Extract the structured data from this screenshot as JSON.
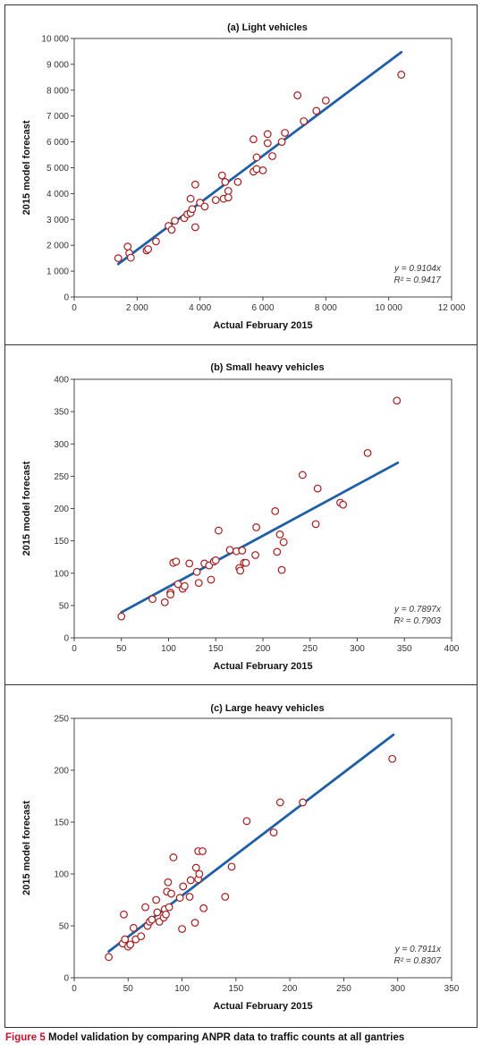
{
  "colors": {
    "points": "#a61c1c",
    "fit_line": "#1f5fa8",
    "frame": "#333333",
    "caption_label": "#c8102e"
  },
  "caption": {
    "label": "Figure 5",
    "text": "Model validation by comparing ANPR data to traffic counts at all gantries"
  },
  "chart_data": [
    {
      "type": "scatter",
      "title": "(a) Light vehicles",
      "xlabel": "Actual February 2015",
      "ylabel": "2015 model forecast",
      "xlim": [
        0,
        12000
      ],
      "ylim": [
        0,
        10000
      ],
      "x_ticks": [
        0,
        2000,
        4000,
        6000,
        8000,
        10000,
        12000
      ],
      "x_tick_labels": [
        "0",
        "2 000",
        "4 000",
        "6 000",
        "8 000",
        "10 000",
        "12 000"
      ],
      "y_ticks": [
        0,
        1000,
        2000,
        3000,
        4000,
        5000,
        6000,
        7000,
        8000,
        9000,
        10000
      ],
      "y_tick_labels": [
        "0",
        "1 000",
        "2 000",
        "3 000",
        "4 000",
        "5 000",
        "6 000",
        "7 000",
        "8 000",
        "9 000",
        "10 000"
      ],
      "equation": "y = 0.9104x",
      "r_squared": "R² = 0.9417",
      "trendline": {
        "slope": 0.9104,
        "x_range": [
          1400,
          10400
        ]
      },
      "points": [
        [
          1400,
          1500
        ],
        [
          1700,
          1950
        ],
        [
          1750,
          1700
        ],
        [
          1800,
          1520
        ],
        [
          2300,
          1800
        ],
        [
          2350,
          1850
        ],
        [
          2600,
          2150
        ],
        [
          3000,
          2750
        ],
        [
          3100,
          2600
        ],
        [
          3200,
          2950
        ],
        [
          3500,
          3050
        ],
        [
          3600,
          3200
        ],
        [
          3700,
          3250
        ],
        [
          3700,
          3800
        ],
        [
          3750,
          3400
        ],
        [
          3850,
          4350
        ],
        [
          3850,
          2700
        ],
        [
          4000,
          3650
        ],
        [
          4150,
          3500
        ],
        [
          4500,
          3750
        ],
        [
          4700,
          4700
        ],
        [
          4750,
          3800
        ],
        [
          4800,
          4450
        ],
        [
          4900,
          4100
        ],
        [
          4900,
          3850
        ],
        [
          5200,
          4450
        ],
        [
          5700,
          4850
        ],
        [
          5700,
          6100
        ],
        [
          5800,
          4950
        ],
        [
          5800,
          5400
        ],
        [
          6000,
          4900
        ],
        [
          6150,
          6300
        ],
        [
          6150,
          5950
        ],
        [
          6300,
          5450
        ],
        [
          6600,
          6000
        ],
        [
          6700,
          6350
        ],
        [
          7100,
          7800
        ],
        [
          7300,
          6800
        ],
        [
          7700,
          7200
        ],
        [
          8000,
          7600
        ],
        [
          10400,
          8600
        ]
      ]
    },
    {
      "type": "scatter",
      "title": "(b) Small heavy vehicles",
      "xlabel": "Actual February 2015",
      "ylabel": "2015 model forecast",
      "xlim": [
        0,
        400
      ],
      "ylim": [
        0,
        400
      ],
      "x_ticks": [
        0,
        50,
        100,
        150,
        200,
        250,
        300,
        350,
        400
      ],
      "x_tick_labels": [
        "0",
        "50",
        "100",
        "150",
        "200",
        "250",
        "300",
        "350",
        "400"
      ],
      "y_ticks": [
        0,
        50,
        100,
        150,
        200,
        250,
        300,
        350,
        400
      ],
      "y_tick_labels": [
        "0",
        "50",
        "100",
        "150",
        "200",
        "250",
        "300",
        "350",
        "400"
      ],
      "equation": "y = 0.7897x",
      "r_squared": "R² = 0.7903",
      "trendline": {
        "slope": 0.7897,
        "x_range": [
          50,
          343
        ]
      },
      "points": [
        [
          50,
          33
        ],
        [
          83,
          60
        ],
        [
          96,
          55
        ],
        [
          102,
          70
        ],
        [
          102,
          67
        ],
        [
          105,
          116
        ],
        [
          108,
          118
        ],
        [
          110,
          83
        ],
        [
          115,
          76
        ],
        [
          117,
          80
        ],
        [
          122,
          115
        ],
        [
          130,
          102
        ],
        [
          132,
          85
        ],
        [
          138,
          115
        ],
        [
          143,
          112
        ],
        [
          145,
          90
        ],
        [
          148,
          118
        ],
        [
          150,
          120
        ],
        [
          153,
          166
        ],
        [
          165,
          136
        ],
        [
          172,
          134
        ],
        [
          175,
          108
        ],
        [
          176,
          104
        ],
        [
          178,
          135
        ],
        [
          180,
          116
        ],
        [
          182,
          116
        ],
        [
          192,
          128
        ],
        [
          193,
          171
        ],
        [
          213,
          196
        ],
        [
          215,
          133
        ],
        [
          218,
          160
        ],
        [
          220,
          105
        ],
        [
          222,
          148
        ],
        [
          242,
          252
        ],
        [
          256,
          176
        ],
        [
          258,
          231
        ],
        [
          282,
          209
        ],
        [
          285,
          206
        ],
        [
          311,
          286
        ],
        [
          342,
          367
        ]
      ]
    },
    {
      "type": "scatter",
      "title": "(c) Large heavy vehicles",
      "xlabel": "Actual February 2015",
      "ylabel": "2015 model forecast",
      "xlim": [
        0,
        350
      ],
      "ylim": [
        0,
        250
      ],
      "x_ticks": [
        0,
        50,
        100,
        150,
        200,
        250,
        300,
        350
      ],
      "x_tick_labels": [
        "0",
        "50",
        "100",
        "150",
        "200",
        "250",
        "300",
        "350"
      ],
      "y_ticks": [
        0,
        50,
        100,
        150,
        200,
        250
      ],
      "y_tick_labels": [
        "0",
        "50",
        "100",
        "150",
        "200",
        "250"
      ],
      "equation": "y = 0.7911x",
      "r_squared": "R² = 0.8307",
      "trendline": {
        "slope": 0.7911,
        "x_range": [
          32,
          296
        ]
      },
      "points": [
        [
          32,
          20
        ],
        [
          45,
          33
        ],
        [
          46,
          61
        ],
        [
          47,
          37
        ],
        [
          50,
          30
        ],
        [
          52,
          32
        ],
        [
          55,
          48
        ],
        [
          57,
          37
        ],
        [
          62,
          40
        ],
        [
          66,
          68
        ],
        [
          68,
          50
        ],
        [
          70,
          54
        ],
        [
          72,
          56
        ],
        [
          76,
          75
        ],
        [
          77,
          63
        ],
        [
          79,
          54
        ],
        [
          83,
          58
        ],
        [
          84,
          66
        ],
        [
          85,
          61
        ],
        [
          86,
          83
        ],
        [
          87,
          92
        ],
        [
          88,
          68
        ],
        [
          90,
          81
        ],
        [
          92,
          116
        ],
        [
          98,
          77
        ],
        [
          100,
          47
        ],
        [
          101,
          88
        ],
        [
          107,
          78
        ],
        [
          108,
          94
        ],
        [
          112,
          53
        ],
        [
          113,
          106
        ],
        [
          115,
          95
        ],
        [
          116,
          100
        ],
        [
          115,
          122
        ],
        [
          119,
          122
        ],
        [
          120,
          67
        ],
        [
          140,
          78
        ],
        [
          146,
          107
        ],
        [
          160,
          151
        ],
        [
          185,
          140
        ],
        [
          191,
          169
        ],
        [
          212,
          169
        ],
        [
          295,
          211
        ]
      ]
    }
  ]
}
